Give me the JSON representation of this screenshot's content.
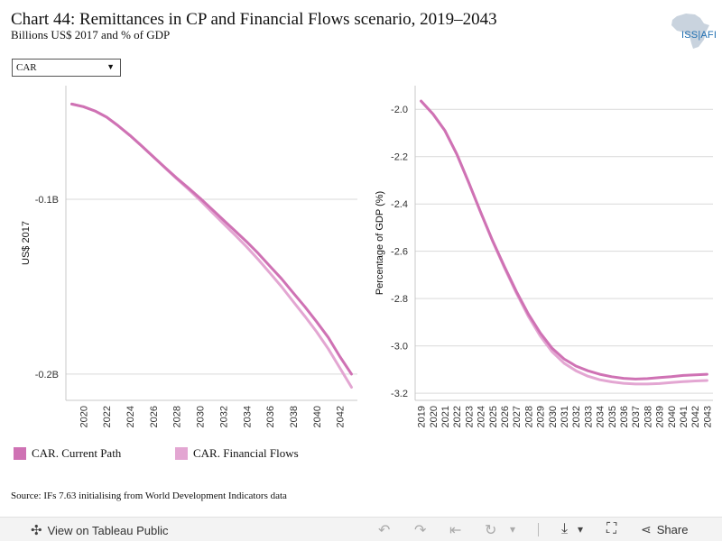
{
  "header": {
    "title": "Chart 44: Remittances in CP and Financial Flows scenario, 2019–2043",
    "subtitle": "Billions US$ 2017 and % of GDP"
  },
  "logo": {
    "text": "ISS|AFI"
  },
  "filter": {
    "selected": "CAR",
    "arrow": "▼"
  },
  "colors": {
    "current_path": "#cf72b4",
    "financial_flows": "#e3a6d2"
  },
  "legend": [
    {
      "label": "CAR. Current Path",
      "color": "#cf72b4"
    },
    {
      "label": "CAR. Financial Flows",
      "color": "#e3a6d2"
    }
  ],
  "source": "Source: IFs 7.63 initialising from World Development Indicators data",
  "toolbar": {
    "view_label": "View on Tableau Public",
    "view_icon": "tableau-icon",
    "share_label": "Share",
    "share_icon": "share-icon",
    "undo_icon": "↶",
    "redo_icon": "↷",
    "revert_icon": "⇤",
    "refresh_icon": "↻",
    "download_icon": "⤓",
    "fullscreen_icon": "⛶",
    "dropdown_icon": "▾"
  },
  "chart_data": [
    {
      "type": "line",
      "ylabel": "US$ 2017",
      "xlabel": "",
      "x_ticks": [
        2020,
        2022,
        2024,
        2026,
        2028,
        2030,
        2032,
        2034,
        2036,
        2038,
        2040,
        2042
      ],
      "y_ticks": [
        {
          "value": -0.1,
          "label": "-0.1B"
        },
        {
          "value": -0.2,
          "label": "-0.2B"
        }
      ],
      "xlim": [
        2018.5,
        2043.5
      ],
      "ylim": [
        -0.215,
        -0.035
      ],
      "grid": true,
      "series": [
        {
          "name": "CAR. Current Path",
          "color": "#cf72b4",
          "x": [
            2019,
            2020,
            2021,
            2022,
            2023,
            2024,
            2025,
            2026,
            2027,
            2028,
            2029,
            2030,
            2031,
            2032,
            2033,
            2034,
            2035,
            2036,
            2037,
            2038,
            2039,
            2040,
            2041,
            2042,
            2043
          ],
          "values": [
            -0.0455,
            -0.047,
            -0.0495,
            -0.053,
            -0.058,
            -0.0635,
            -0.0695,
            -0.0757,
            -0.0818,
            -0.0878,
            -0.0935,
            -0.0993,
            -0.1055,
            -0.1118,
            -0.118,
            -0.1243,
            -0.131,
            -0.1383,
            -0.1455,
            -0.1535,
            -0.1615,
            -0.17,
            -0.179,
            -0.19,
            -0.2
          ]
        },
        {
          "name": "CAR. Financial Flows",
          "color": "#e3a6d2",
          "x": [
            2019,
            2020,
            2021,
            2022,
            2023,
            2024,
            2025,
            2026,
            2027,
            2028,
            2029,
            2030,
            2031,
            2032,
            2033,
            2034,
            2035,
            2036,
            2037,
            2038,
            2039,
            2040,
            2041,
            2042,
            2043
          ],
          "values": [
            -0.0455,
            -0.047,
            -0.0495,
            -0.053,
            -0.058,
            -0.0635,
            -0.0695,
            -0.0757,
            -0.082,
            -0.0882,
            -0.0942,
            -0.1005,
            -0.1072,
            -0.1138,
            -0.1204,
            -0.1272,
            -0.1345,
            -0.1422,
            -0.15,
            -0.1585,
            -0.167,
            -0.1758,
            -0.1855,
            -0.1965,
            -0.2075
          ]
        }
      ]
    },
    {
      "type": "line",
      "ylabel": "Percentage of GDP (%)",
      "xlabel": "",
      "x_ticks": [
        2019,
        2020,
        2021,
        2022,
        2023,
        2024,
        2025,
        2026,
        2027,
        2028,
        2029,
        2030,
        2031,
        2032,
        2033,
        2034,
        2035,
        2036,
        2037,
        2038,
        2039,
        2040,
        2041,
        2042,
        2043
      ],
      "y_ticks": [
        {
          "value": -2.0,
          "label": "-2.0"
        },
        {
          "value": -2.2,
          "label": "-2.2"
        },
        {
          "value": -2.4,
          "label": "-2.4"
        },
        {
          "value": -2.6,
          "label": "-2.6"
        },
        {
          "value": -2.8,
          "label": "-2.8"
        },
        {
          "value": -3.0,
          "label": "-3.0"
        },
        {
          "value": -3.2,
          "label": "-3.2"
        }
      ],
      "xlim": [
        2018.5,
        2043.5
      ],
      "ylim": [
        -3.23,
        -1.9
      ],
      "grid": true,
      "series": [
        {
          "name": "CAR. Current Path",
          "color": "#cf72b4",
          "x": [
            2019,
            2020,
            2021,
            2022,
            2023,
            2024,
            2025,
            2026,
            2027,
            2028,
            2029,
            2030,
            2031,
            2032,
            2033,
            2034,
            2035,
            2036,
            2037,
            2038,
            2039,
            2040,
            2041,
            2042,
            2043
          ],
          "values": [
            -1.965,
            -2.02,
            -2.09,
            -2.19,
            -2.31,
            -2.435,
            -2.555,
            -2.665,
            -2.77,
            -2.865,
            -2.945,
            -3.01,
            -3.055,
            -3.085,
            -3.105,
            -3.12,
            -3.13,
            -3.137,
            -3.14,
            -3.138,
            -3.134,
            -3.13,
            -3.125,
            -3.122,
            -3.12
          ]
        },
        {
          "name": "CAR. Financial Flows",
          "color": "#e3a6d2",
          "x": [
            2019,
            2020,
            2021,
            2022,
            2023,
            2024,
            2025,
            2026,
            2027,
            2028,
            2029,
            2030,
            2031,
            2032,
            2033,
            2034,
            2035,
            2036,
            2037,
            2038,
            2039,
            2040,
            2041,
            2042,
            2043
          ],
          "values": [
            -1.965,
            -2.02,
            -2.09,
            -2.19,
            -2.31,
            -2.435,
            -2.557,
            -2.67,
            -2.777,
            -2.875,
            -2.958,
            -3.025,
            -3.073,
            -3.105,
            -3.128,
            -3.143,
            -3.152,
            -3.158,
            -3.161,
            -3.161,
            -3.159,
            -3.155,
            -3.151,
            -3.148,
            -3.146
          ]
        }
      ]
    }
  ]
}
